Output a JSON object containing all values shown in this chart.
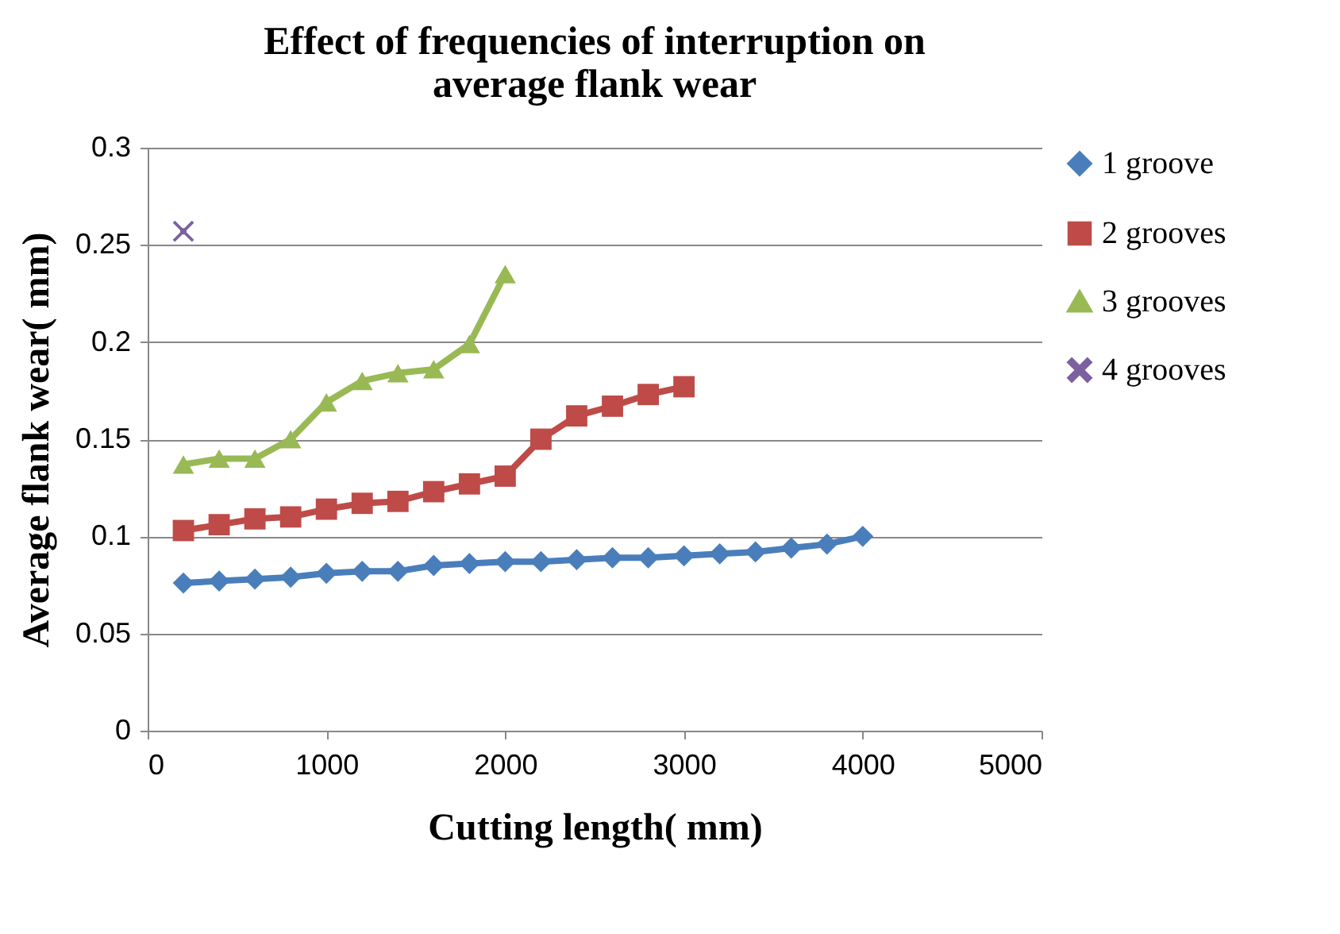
{
  "chart_data": {
    "type": "line",
    "title": "Effect of frequencies of interruption on\naverage flank wear",
    "xlabel": "Cutting length( mm)",
    "ylabel": "Average flank wear( mm)",
    "xlim": [
      0,
      5000
    ],
    "xticks": [
      0,
      1000,
      2000,
      3000,
      4000,
      5000
    ],
    "ylim": [
      0,
      0.3
    ],
    "yticks": [
      0,
      0.05,
      0.1,
      0.15,
      0.2,
      0.25,
      0.3
    ],
    "grid": "y",
    "legend": "right",
    "series": [
      {
        "name": "1 groove",
        "color": "#4a7ebb",
        "marker": "diamond",
        "x": [
          200,
          400,
          600,
          800,
          1000,
          1200,
          1400,
          1600,
          1800,
          2000,
          2200,
          2400,
          2600,
          2800,
          3000,
          3200,
          3400,
          3600,
          3800,
          4000
        ],
        "values": [
          0.076,
          0.077,
          0.078,
          0.079,
          0.081,
          0.082,
          0.082,
          0.085,
          0.086,
          0.087,
          0.087,
          0.088,
          0.089,
          0.089,
          0.09,
          0.091,
          0.092,
          0.094,
          0.096,
          0.1
        ]
      },
      {
        "name": "2 grooves",
        "color": "#be4b48",
        "marker": "square",
        "x": [
          200,
          400,
          600,
          800,
          1000,
          1200,
          1400,
          1600,
          1800,
          2000,
          2200,
          2400,
          2600,
          2800,
          3000
        ],
        "values": [
          0.103,
          0.106,
          0.109,
          0.11,
          0.114,
          0.117,
          0.118,
          0.123,
          0.127,
          0.131,
          0.15,
          0.162,
          0.167,
          0.173,
          0.177
        ]
      },
      {
        "name": "3 grooves",
        "color": "#98b954",
        "marker": "triangle",
        "x": [
          200,
          400,
          600,
          800,
          1000,
          1200,
          1400,
          1600,
          1800,
          2000
        ],
        "values": [
          0.137,
          0.14,
          0.14,
          0.15,
          0.169,
          0.18,
          0.184,
          0.186,
          0.199,
          0.235
        ]
      },
      {
        "name": "4 grooves",
        "color": "#7d60a0",
        "marker": "cross",
        "x": [
          200
        ],
        "values": [
          0.257
        ]
      }
    ]
  }
}
